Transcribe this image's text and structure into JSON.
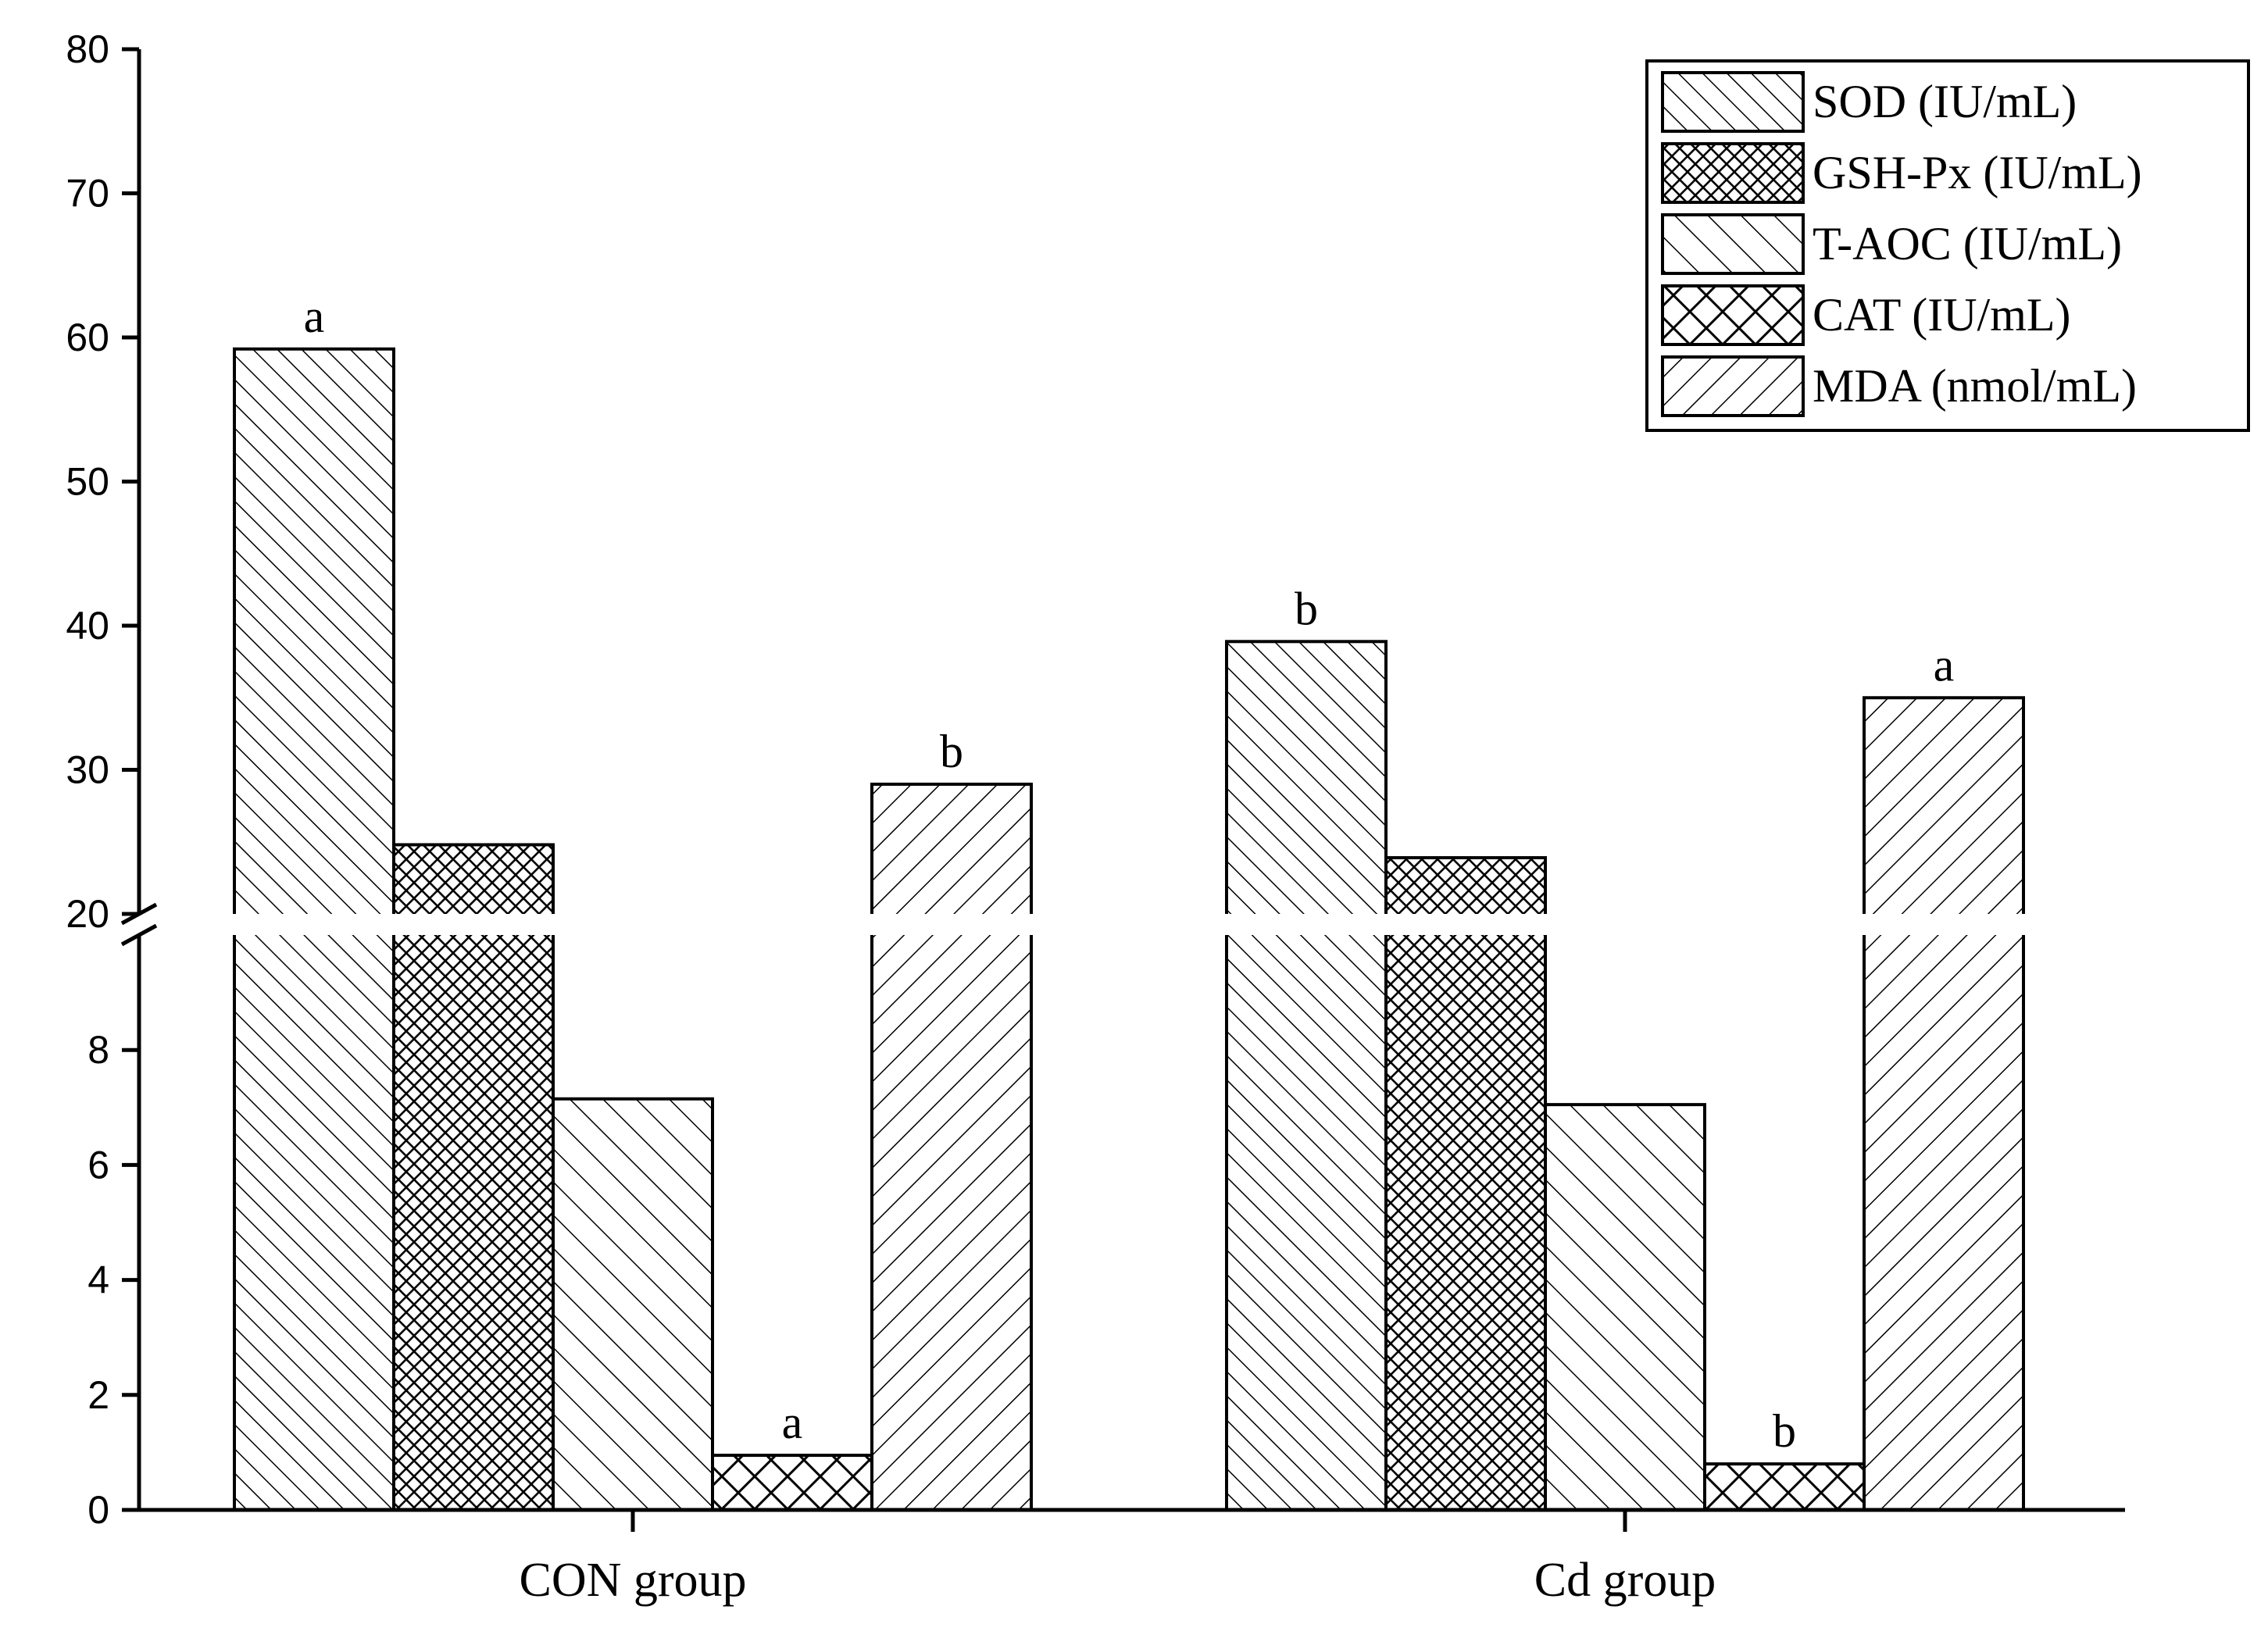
{
  "chart_data": {
    "type": "bar",
    "title": "",
    "xlabel": "",
    "ylabel": "",
    "categories": [
      "CON group",
      "Cd group"
    ],
    "axis_break": {
      "lower_range": [
        0,
        10
      ],
      "upper_range": [
        20,
        80
      ]
    },
    "lower_ticks": [
      0,
      2,
      4,
      6,
      8
    ],
    "upper_ticks": [
      20,
      30,
      40,
      50,
      60,
      70,
      80
    ],
    "series": [
      {
        "name": "SOD (IU/mL)",
        "pattern": "diag-fine",
        "values": [
          59.2,
          38.9
        ],
        "letters": [
          "a",
          "b"
        ]
      },
      {
        "name": "GSH-Px (IU/mL)",
        "pattern": "crosshatch-fine",
        "values": [
          24.8,
          23.9
        ],
        "letters": [
          "",
          ""
        ]
      },
      {
        "name": "T-AOC (IU/mL)",
        "pattern": "diag-wide",
        "values": [
          7.15,
          7.05
        ],
        "letters": [
          "",
          ""
        ]
      },
      {
        "name": "CAT (IU/mL)",
        "pattern": "crosshatch-wide",
        "values": [
          0.95,
          0.8
        ],
        "letters": [
          "a",
          "b"
        ]
      },
      {
        "name": "MDA (nmol/mL)",
        "pattern": "back-diag",
        "values": [
          29.0,
          35.0
        ],
        "letters": [
          "b",
          "a"
        ]
      }
    ],
    "legend_position": "top-right"
  }
}
